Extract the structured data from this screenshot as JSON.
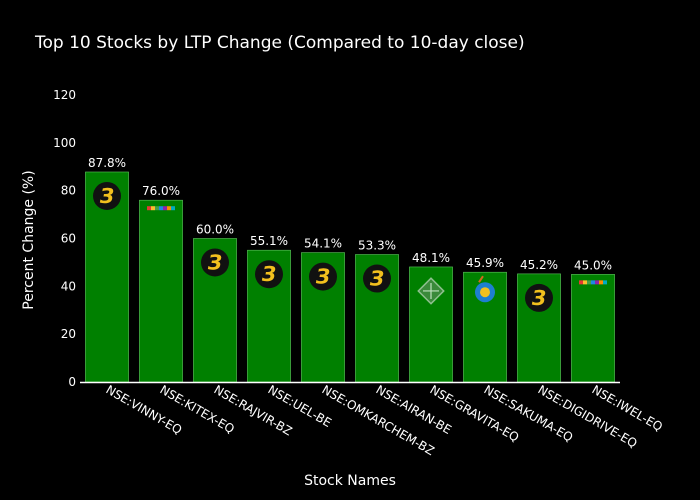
{
  "chart_data": {
    "type": "bar",
    "title": "Top 10 Stocks by LTP Change (Compared to 10-day close)",
    "xlabel": "Stock Names",
    "ylabel": "Percent Change (%)",
    "categories": [
      "NSE:VINNY-EQ",
      "NSE:KITEX-EQ",
      "NSE:RAJVIR-BZ",
      "NSE:UEL-BE",
      "NSE:OMKARCHEM-BZ",
      "NSE:AIRAN-BE",
      "NSE:GRAVITA-EQ",
      "NSE:SAKUMA-EQ",
      "NSE:DIGIDRIVE-EQ",
      "NSE:IWEL-EQ"
    ],
    "values": [
      87.8,
      76.0,
      60.0,
      55.1,
      54.1,
      53.3,
      48.1,
      45.9,
      45.2,
      45.0
    ],
    "data_labels": [
      "87.8%",
      "76.0%",
      "60.0%",
      "55.1%",
      "54.1%",
      "53.3%",
      "48.1%",
      "45.9%",
      "45.2%",
      "45.0%"
    ],
    "logos": [
      "badge-logo",
      "strip-logo",
      "badge-logo",
      "badge-logo",
      "badge-logo",
      "badge-logo",
      "diamond-logo",
      "circle-logo",
      "badge-logo",
      "strip-logo"
    ],
    "yticks": [
      0,
      20,
      40,
      60,
      80,
      100,
      120
    ],
    "ylim": [
      0,
      125
    ],
    "grid": false,
    "colors": {
      "background": "#000000",
      "bar": "#008000",
      "bar_outline": "#5fbf5f",
      "text": "#ffffff",
      "logo_gold": "#f2c01e"
    }
  }
}
